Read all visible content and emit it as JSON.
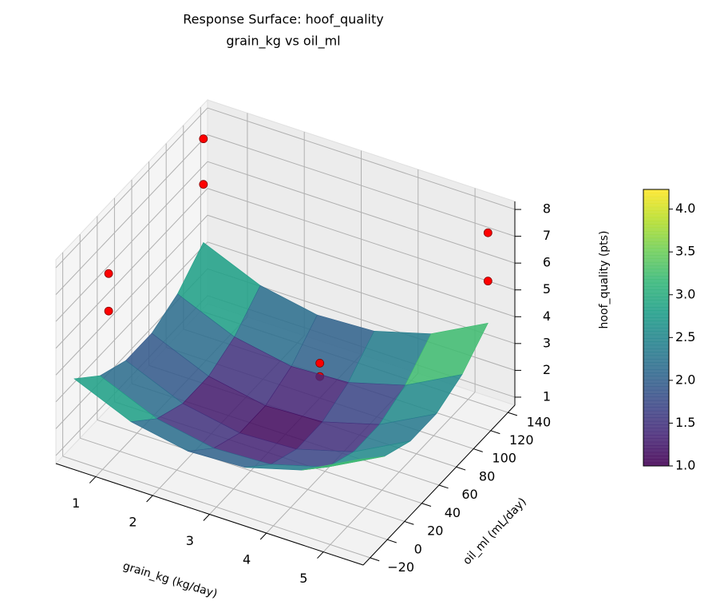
{
  "chart_data": {
    "type": "surface",
    "title": "Response Surface: hoof_quality",
    "subtitle": "grain_kg vs oil_ml",
    "x_label": "grain_kg (kg/day)",
    "y_label": "oil_ml (mL/day)",
    "z_label": "hoof_quality (pts)",
    "surface": {
      "colormap": "viridis",
      "x": [
        0.5,
        1.5,
        2.5,
        3.5,
        4.5,
        5.5
      ],
      "y": [
        -20,
        10,
        40,
        70,
        100,
        130
      ],
      "z": [
        [
          3.73,
          2.83,
          2.43,
          2.53,
          3.13,
          4.23
        ],
        [
          2.83,
          1.93,
          1.53,
          1.63,
          2.23,
          3.33
        ],
        [
          2.38,
          1.48,
          1.08,
          1.18,
          1.78,
          2.88
        ],
        [
          2.38,
          1.48,
          1.08,
          1.18,
          1.78,
          2.88
        ],
        [
          2.83,
          1.93,
          1.53,
          1.63,
          2.23,
          3.33
        ],
        [
          3.73,
          2.83,
          2.43,
          2.53,
          3.13,
          4.23
        ]
      ]
    },
    "points": {
      "color": "#ff0000",
      "x": [
        0.5,
        0.5,
        0.5,
        0.5,
        5.5,
        5.5,
        3.0,
        3.0
      ],
      "y": [
        130,
        130,
        20,
        20,
        130,
        130,
        100,
        100
      ],
      "z": [
        7.6,
        5.9,
        6.3,
        4.9,
        7.6,
        5.8,
        2.0,
        1.5
      ]
    },
    "xlim": [
      0.3,
      5.7
    ],
    "ylim": [
      -28,
      148
    ],
    "zlim": [
      0.7,
      8.3
    ],
    "xticks": [
      1,
      2,
      3,
      4,
      5
    ],
    "yticks": [
      {
        "value": -20,
        "label": "−20"
      },
      0,
      20,
      40,
      60,
      80,
      100,
      120,
      140
    ],
    "zticks": [
      1,
      2,
      3,
      4,
      5,
      6,
      7,
      8
    ],
    "colorbar": {
      "clim": [
        1.0,
        4.23
      ],
      "ticks": [
        {
          "value": 1.0,
          "label": "1.0"
        },
        {
          "value": 1.5,
          "label": "1.5"
        },
        {
          "value": 2.0,
          "label": "2.0"
        },
        {
          "value": 2.5,
          "label": "2.5"
        },
        {
          "value": 3.0,
          "label": "3.0"
        },
        {
          "value": 3.5,
          "label": "3.5"
        },
        {
          "value": 4.0,
          "label": "4.0"
        }
      ]
    },
    "grid": true
  }
}
